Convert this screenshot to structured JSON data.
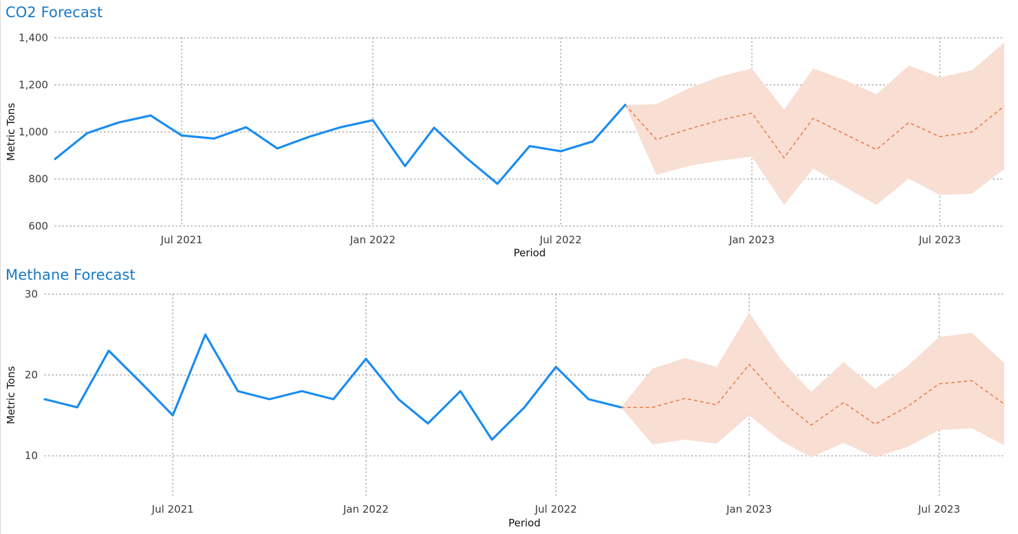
{
  "colors": {
    "title": "#1778c8",
    "actual": "#1a8cf0",
    "forecast": "#e8713c",
    "band": "#f9ded3",
    "grid": "#9a9a9a"
  },
  "chart_data": [
    {
      "type": "line",
      "title": "CO2 Forecast",
      "xlabel": "Period",
      "ylabel": "Metric Tons",
      "ylim": [
        600,
        1400
      ],
      "yticks": [
        600,
        800,
        1000,
        1200,
        1400
      ],
      "ytick_labels": [
        "600",
        "800",
        "1,000",
        "1,200",
        "1,400"
      ],
      "xlim": [
        "2021-03-01",
        "2023-09-01"
      ],
      "xticks": [
        {
          "date": "2021-07-01",
          "label": "Jul 2021"
        },
        {
          "date": "2022-01-01",
          "label": "Jan 2022"
        },
        {
          "date": "2022-07-01",
          "label": "Jul 2022"
        },
        {
          "date": "2023-01-01",
          "label": "Jan 2023"
        },
        {
          "date": "2023-07-01",
          "label": "Jul 2023"
        }
      ],
      "grid": true,
      "actual": {
        "x": [
          "2021-03-01",
          "2021-04-01",
          "2021-05-01",
          "2021-06-01",
          "2021-07-01",
          "2021-08-01",
          "2021-09-01",
          "2021-10-01",
          "2021-11-01",
          "2021-12-01",
          "2022-01-01",
          "2022-02-01",
          "2022-03-01",
          "2022-04-01",
          "2022-05-01",
          "2022-06-01",
          "2022-07-01",
          "2022-08-01",
          "2022-09-01"
        ],
        "y": [
          885,
          995,
          1040,
          1070,
          985,
          972,
          1020,
          930,
          980,
          1020,
          1050,
          855,
          1018,
          890,
          780,
          940,
          918,
          960,
          1115
        ]
      },
      "forecast": {
        "x": [
          "2022-09-01",
          "2022-10-01",
          "2022-11-01",
          "2022-12-01",
          "2023-01-01",
          "2023-02-01",
          "2023-03-01",
          "2023-04-01",
          "2023-05-01",
          "2023-06-01",
          "2023-07-01",
          "2023-08-01",
          "2023-09-01"
        ],
        "y": [
          1115,
          968,
          1012,
          1050,
          1080,
          890,
          1058,
          990,
          925,
          1040,
          980,
          1000,
          1110
        ],
        "upper": [
          1115,
          1118,
          1185,
          1235,
          1270,
          1095,
          1270,
          1220,
          1160,
          1282,
          1232,
          1262,
          1380
        ],
        "lower": [
          1115,
          818,
          855,
          878,
          895,
          690,
          845,
          765,
          690,
          802,
          732,
          738,
          842
        ]
      }
    },
    {
      "type": "line",
      "title": "Methane Forecast",
      "xlabel": "Period",
      "ylabel": "Metric Tons",
      "ylim": [
        5,
        30
      ],
      "yticks": [
        10,
        20,
        30
      ],
      "ytick_labels": [
        "10",
        "20",
        "30"
      ],
      "xlim": [
        "2021-03-01",
        "2023-09-01"
      ],
      "xticks": [
        {
          "date": "2021-07-01",
          "label": "Jul 2021"
        },
        {
          "date": "2022-01-01",
          "label": "Jan 2022"
        },
        {
          "date": "2022-07-01",
          "label": "Jul 2022"
        },
        {
          "date": "2023-01-01",
          "label": "Jan 2023"
        },
        {
          "date": "2023-07-01",
          "label": "Jul 2023"
        }
      ],
      "grid": true,
      "actual": {
        "x": [
          "2021-03-01",
          "2021-04-01",
          "2021-05-01",
          "2021-06-01",
          "2021-07-01",
          "2021-08-01",
          "2021-09-01",
          "2021-10-01",
          "2021-11-01",
          "2021-12-01",
          "2022-01-01",
          "2022-02-01",
          "2022-03-01",
          "2022-04-01",
          "2022-05-01",
          "2022-06-01",
          "2022-07-01",
          "2022-08-01",
          "2022-09-01"
        ],
        "y": [
          17,
          16,
          23,
          19,
          15,
          25,
          18,
          17,
          18,
          17,
          22,
          17,
          14,
          18,
          12,
          16,
          21,
          17,
          16
        ]
      },
      "forecast": {
        "x": [
          "2022-09-01",
          "2022-10-01",
          "2022-11-01",
          "2022-12-01",
          "2023-01-01",
          "2023-02-01",
          "2023-03-01",
          "2023-04-01",
          "2023-05-01",
          "2023-06-01",
          "2023-07-01",
          "2023-08-01",
          "2023-09-01"
        ],
        "y": [
          16,
          16,
          17.1,
          16.3,
          21.3,
          16.8,
          13.8,
          16.6,
          13.9,
          16.1,
          18.9,
          19.3,
          16.4
        ],
        "upper": [
          16,
          20.8,
          22.1,
          21.0,
          27.7,
          21.8,
          17.9,
          21.6,
          18.3,
          21.1,
          24.7,
          25.2,
          21.5
        ],
        "lower": [
          16,
          11.4,
          12.0,
          11.5,
          15.0,
          11.8,
          9.8,
          11.6,
          9.8,
          11.1,
          13.2,
          13.4,
          11.3
        ]
      }
    }
  ]
}
